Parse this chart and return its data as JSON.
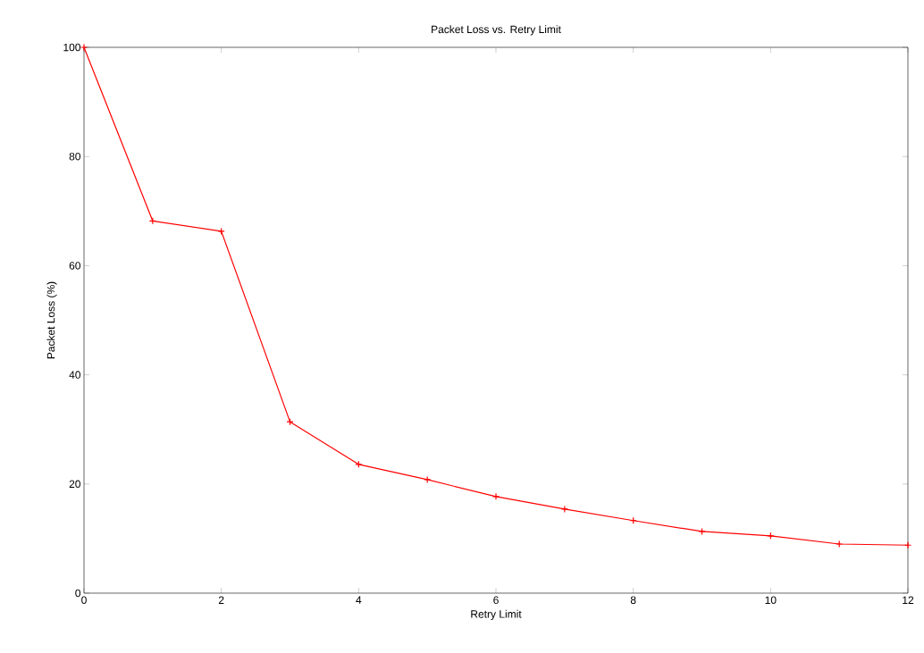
{
  "chart_data": {
    "type": "line",
    "title": "Packet Loss vs. Retry Limit",
    "xlabel": "Retry Limit",
    "ylabel": "Packet Loss (%)",
    "x": [
      0,
      1,
      2,
      3,
      4,
      5,
      6,
      7,
      8,
      9,
      10,
      11,
      12
    ],
    "values": [
      100,
      68.2,
      66.3,
      31.4,
      23.6,
      20.8,
      17.7,
      15.4,
      13.3,
      11.3,
      10.5,
      9.0,
      8.8
    ],
    "color": "#ff0000",
    "marker": "cross",
    "line_style": "solid",
    "grid": false,
    "xlim": [
      0,
      12
    ],
    "ylim": [
      0,
      100
    ],
    "xticks": [
      0,
      2,
      4,
      6,
      8,
      10,
      12
    ],
    "yticks": [
      0,
      20,
      40,
      60,
      80,
      100
    ]
  }
}
